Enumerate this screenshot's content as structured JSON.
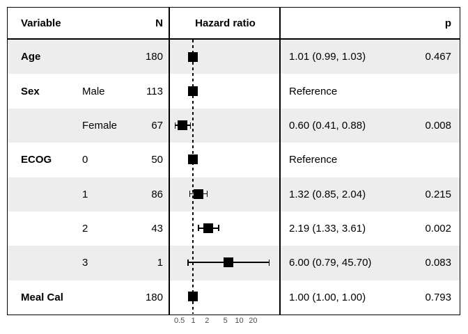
{
  "chart_data": {
    "type": "scatter",
    "subtype": "forest-plot",
    "title": "",
    "columns": [
      "Variable",
      "N",
      "Hazard ratio",
      "p"
    ],
    "x_axis": {
      "scale": "log10",
      "reference_line": 1,
      "ticks": [
        {
          "label": "0.5",
          "value": 0.5
        },
        {
          "label": "1",
          "value": 1
        },
        {
          "label": "2",
          "value": 2
        },
        {
          "label": "5",
          "value": 5
        },
        {
          "label": "10",
          "value": 10
        },
        {
          "label": "20",
          "value": 20
        }
      ]
    },
    "rows": [
      {
        "variable": "Age",
        "level": "",
        "n": "180",
        "hr": 1.01,
        "ci_low": 0.99,
        "ci_high": 1.03,
        "estimate_label": "1.01 (0.99, 1.03)",
        "p": "0.467"
      },
      {
        "variable": "Sex",
        "level": "Male",
        "n": "113",
        "hr": 1.0,
        "ci_low": null,
        "ci_high": null,
        "estimate_label": "Reference",
        "p": ""
      },
      {
        "variable": "",
        "level": "Female",
        "n": "67",
        "hr": 0.6,
        "ci_low": 0.41,
        "ci_high": 0.88,
        "estimate_label": "0.60 (0.41, 0.88)",
        "p": "0.008"
      },
      {
        "variable": "ECOG",
        "level": "0",
        "n": "50",
        "hr": 1.0,
        "ci_low": null,
        "ci_high": null,
        "estimate_label": "Reference",
        "p": ""
      },
      {
        "variable": "",
        "level": "1",
        "n": "86",
        "hr": 1.32,
        "ci_low": 0.85,
        "ci_high": 2.04,
        "estimate_label": "1.32 (0.85, 2.04)",
        "p": "0.215"
      },
      {
        "variable": "",
        "level": "2",
        "n": "43",
        "hr": 2.19,
        "ci_low": 1.33,
        "ci_high": 3.61,
        "estimate_label": "2.19 (1.33, 3.61)",
        "p": "0.002"
      },
      {
        "variable": "",
        "level": "3",
        "n": "1",
        "hr": 6.0,
        "ci_low": 0.79,
        "ci_high": 45.7,
        "estimate_label": "6.00 (0.79, 45.70)",
        "p": "0.083"
      },
      {
        "variable": "Meal Cal",
        "level": "",
        "n": "180",
        "hr": 1.0,
        "ci_low": 1.0,
        "ci_high": 1.0,
        "estimate_label": "1.00 (1.00, 1.00)",
        "p": "0.793"
      }
    ]
  },
  "colors": {
    "band": "#ededed",
    "marker": "#000000",
    "axis_label": "#4d4d4d",
    "border": "#000000",
    "background": "#ffffff"
  }
}
